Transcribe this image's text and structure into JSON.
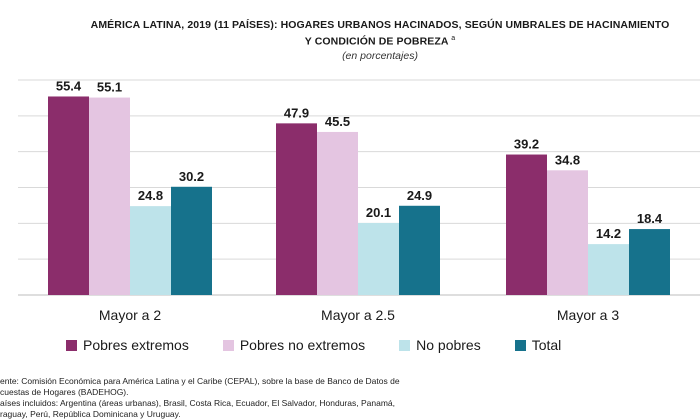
{
  "header": {
    "title_line1": "AMÉRICA LATINA, 2019 (11 PAÍSES): HOGARES URBANOS HACINADOS, SEGÚN UMBRALES DE HACINAMIENTO",
    "title_line2": "Y CONDICIÓN DE POBREZA",
    "title_superscript": "a",
    "subtitle": "(en porcentajes)"
  },
  "chart_data": {
    "type": "bar",
    "title": "AMÉRICA LATINA, 2019 (11 PAÍSES): HOGARES URBANOS HACINADOS, SEGÚN UMBRALES DE HACINAMIENTO Y CONDICIÓN DE POBREZA",
    "subtitle": "(en porcentajes)",
    "categories": [
      "Mayor a 2",
      "Mayor a 2.5",
      "Mayor a 3"
    ],
    "series": [
      {
        "name": "Pobres extremos",
        "color": "#8b2d6b",
        "values": [
          55.4,
          47.9,
          39.2
        ]
      },
      {
        "name": "Pobres no extremos",
        "color": "#e4c5e1",
        "values": [
          55.1,
          45.5,
          34.8
        ]
      },
      {
        "name": "No pobres",
        "color": "#bde3ea",
        "values": [
          24.8,
          20.1,
          14.2
        ]
      },
      {
        "name": "Total",
        "color": "#16728c",
        "values": [
          30.2,
          24.9,
          18.4
        ]
      }
    ],
    "ylim": [
      0,
      60
    ],
    "grid": true,
    "legend_position": "bottom",
    "data_labels": true
  },
  "notes": {
    "line1": "ente: Comisión Económica para América Latina y el Caribe (CEPAL), sobre la base de Banco de Datos de",
    "line2": "cuestas de Hogares (BADEHOG).",
    "line3": "aíses incluidos: Argentina (áreas urbanas), Brasil, Costa Rica, Ecuador, El Salvador, Honduras, Panamá,",
    "line4": "raguay, Perú, República Dominicana y Uruguay."
  }
}
